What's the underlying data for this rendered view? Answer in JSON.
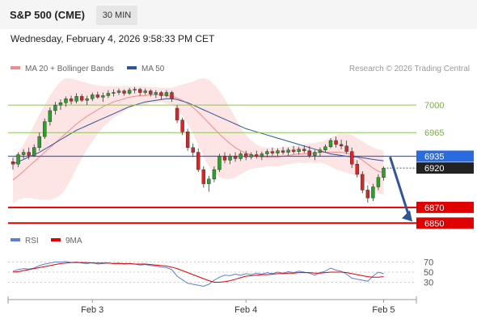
{
  "header": {
    "title": "S&P 500 (CME)",
    "timeframe": "30 MIN",
    "timestamp": "Wednesday, February 4, 2026 9:58:33 PM CET"
  },
  "legend": {
    "bb": {
      "label": "MA 20 + Bollinger Bands",
      "color": "#f28b8b"
    },
    "ma50": {
      "label": "MA 50",
      "color": "#2f5597"
    },
    "research": "Research © 2026 Trading Central"
  },
  "rsi_legend": {
    "rsi": {
      "label": "RSI",
      "color": "#5b7fd6"
    },
    "ma9": {
      "label": "9MA",
      "color": "#e00000"
    }
  },
  "chart_data": {
    "type": "candlestick",
    "x_ticks": [
      "Feb 3",
      "Feb 4",
      "Feb 5"
    ],
    "price_range": [
      6838,
      7034
    ],
    "levels": [
      {
        "value": 7000,
        "label": "7000",
        "kind": "resistance",
        "color": "#8fc35a"
      },
      {
        "value": 6965,
        "label": "6965",
        "kind": "resistance",
        "color": "#8fc35a"
      },
      {
        "value": 6935,
        "label": "6935",
        "kind": "pivot",
        "color": "#2b6be0"
      },
      {
        "value": 6870,
        "label": "6870",
        "kind": "support",
        "color": "#e00000"
      },
      {
        "value": 6850,
        "label": "6850",
        "kind": "support",
        "color": "#e00000"
      }
    ],
    "last_price": {
      "value": 6920,
      "label": "6920"
    },
    "candles": [
      [
        6928,
        6933,
        6918,
        6925
      ],
      [
        6925,
        6940,
        6921,
        6937
      ],
      [
        6937,
        6944,
        6932,
        6940
      ],
      [
        6940,
        6946,
        6931,
        6936
      ],
      [
        6936,
        6950,
        6934,
        6946
      ],
      [
        6946,
        6965,
        6942,
        6960
      ],
      [
        6960,
        6983,
        6957,
        6979
      ],
      [
        6979,
        6997,
        6974,
        6993
      ],
      [
        6993,
        7004,
        6988,
        7000
      ],
      [
        7000,
        7007,
        6994,
        7003
      ],
      [
        7003,
        7011,
        6998,
        7008
      ],
      [
        7008,
        7012,
        7001,
        7005
      ],
      [
        7005,
        7015,
        7002,
        7011
      ],
      [
        7011,
        7014,
        7004,
        7006
      ],
      [
        7006,
        7012,
        7000,
        7008
      ],
      [
        7008,
        7016,
        7005,
        7013
      ],
      [
        7013,
        7017,
        7008,
        7010
      ],
      [
        7010,
        7016,
        7004,
        7012
      ],
      [
        7012,
        7019,
        7009,
        7015
      ],
      [
        7015,
        7020,
        7011,
        7016
      ],
      [
        7016,
        7021,
        7013,
        7018
      ],
      [
        7018,
        7020,
        7012,
        7015
      ],
      [
        7015,
        7022,
        7013,
        7019
      ],
      [
        7019,
        7023,
        7015,
        7020
      ],
      [
        7020,
        7022,
        7012,
        7016
      ],
      [
        7016,
        7021,
        7013,
        7018
      ],
      [
        7018,
        7020,
        7011,
        7014
      ],
      [
        7014,
        7019,
        7009,
        7016
      ],
      [
        7016,
        7018,
        7007,
        7012
      ],
      [
        7012,
        7019,
        7010,
        7016
      ],
      [
        7016,
        7018,
        7004,
        7008
      ],
      [
        6996,
        7000,
        6977,
        6981
      ],
      [
        6981,
        6984,
        6962,
        6966
      ],
      [
        6966,
        6970,
        6942,
        6946
      ],
      [
        6946,
        6951,
        6934,
        6940
      ],
      [
        6940,
        6945,
        6915,
        6918
      ],
      [
        6918,
        6922,
        6895,
        6900
      ],
      [
        6900,
        6910,
        6890,
        6906
      ],
      [
        6906,
        6922,
        6902,
        6918
      ],
      [
        6918,
        6938,
        6915,
        6935
      ],
      [
        6935,
        6940,
        6926,
        6930
      ],
      [
        6930,
        6938,
        6925,
        6935
      ],
      [
        6935,
        6940,
        6928,
        6932
      ],
      [
        6932,
        6941,
        6929,
        6938
      ],
      [
        6938,
        6942,
        6930,
        6934
      ],
      [
        6934,
        6940,
        6931,
        6937
      ],
      [
        6937,
        6942,
        6932,
        6935
      ],
      [
        6935,
        6941,
        6930,
        6938
      ],
      [
        6938,
        6944,
        6934,
        6941
      ],
      [
        6941,
        6946,
        6936,
        6939
      ],
      [
        6939,
        6945,
        6935,
        6942
      ],
      [
        6942,
        6947,
        6937,
        6940
      ],
      [
        6940,
        6946,
        6936,
        6943
      ],
      [
        6943,
        6948,
        6938,
        6941
      ],
      [
        6941,
        6947,
        6937,
        6944
      ],
      [
        6944,
        6949,
        6939,
        6942
      ],
      [
        6942,
        6948,
        6933,
        6936
      ],
      [
        6936,
        6943,
        6930,
        6940
      ],
      [
        6940,
        6946,
        6935,
        6943
      ],
      [
        6943,
        6950,
        6940,
        6947
      ],
      [
        6947,
        6958,
        6945,
        6955
      ],
      [
        6955,
        6960,
        6946,
        6950
      ],
      [
        6950,
        6956,
        6944,
        6948
      ],
      [
        6948,
        6955,
        6938,
        6941
      ],
      [
        6941,
        6946,
        6920,
        6925
      ],
      [
        6925,
        6930,
        6908,
        6912
      ],
      [
        6912,
        6916,
        6888,
        6892
      ],
      [
        6892,
        6898,
        6876,
        6882
      ],
      [
        6882,
        6900,
        6878,
        6896
      ],
      [
        6896,
        6912,
        6892,
        6908
      ],
      [
        6908,
        6922,
        6904,
        6920
      ]
    ],
    "ma20": [
      6905,
      6910,
      6916,
      6922,
      6928,
      6934,
      6940,
      6946,
      6952,
      6958,
      6964,
      6970,
      6976,
      6981,
      6986,
      6990,
      6994,
      6998,
      7001,
      7004,
      7006,
      7008,
      7010,
      7011,
      7012,
      7012,
      7013,
      7013,
      7013,
      7012,
      7011,
      7009,
      7006,
      7002,
      6997,
      6991,
      6984,
      6977,
      6970,
      6963,
      6957,
      6951,
      6946,
      6942,
      6939,
      6937,
      6935,
      6934,
      6934,
      6934,
      6934,
      6935,
      6936,
      6937,
      6938,
      6938,
      6939,
      6939,
      6940,
      6940,
      6940,
      6940,
      6940,
      6939,
      6937,
      6934,
      6930,
      6925,
      6920,
      6916,
      6914
    ],
    "bb_upper": [
      6935,
      6940,
      6950,
      6962,
      6975,
      6988,
      7000,
      7012,
      7022,
      7030,
      7034,
      7034,
      7032,
      7030,
      7028,
      7026,
      7025,
      7024,
      7024,
      7024,
      7024,
      7024,
      7024,
      7024,
      7024,
      7024,
      7023,
      7023,
      7022,
      7022,
      7022,
      7024,
      7026,
      7028,
      7030,
      7033,
      7034,
      7032,
      7026,
      7018,
      7008,
      6996,
      6984,
      6972,
      6962,
      6955,
      6950,
      6947,
      6946,
      6946,
      6946,
      6946,
      6947,
      6948,
      6949,
      6950,
      6951,
      6952,
      6953,
      6955,
      6958,
      6962,
      6964,
      6964,
      6962,
      6958,
      6954,
      6950,
      6946,
      6944,
      6942
    ],
    "bb_lower": [
      6875,
      6880,
      6882,
      6882,
      6881,
      6880,
      6880,
      6880,
      6882,
      6886,
      6894,
      6906,
      6920,
      6932,
      6944,
      6954,
      6963,
      6972,
      6978,
      6984,
      6988,
      6992,
      6996,
      6998,
      7000,
      7000,
      7003,
      7003,
      7004,
      7002,
      7000,
      6994,
      6986,
      6976,
      6964,
      6949,
      6934,
      6922,
      6914,
      6908,
      6906,
      6906,
      6908,
      6912,
      6916,
      6919,
      6920,
      6921,
      6922,
      6922,
      6922,
      6924,
      6925,
      6926,
      6927,
      6926,
      6927,
      6926,
      6927,
      6925,
      6922,
      6918,
      6916,
      6914,
      6912,
      6910,
      6906,
      6900,
      6894,
      6888,
      6886
    ],
    "ma50": [
      6925,
      6928,
      6931,
      6934,
      6937,
      6940,
      6944,
      6948,
      6952,
      6956,
      6960,
      6964,
      6968,
      6971,
      6974,
      6977,
      6980,
      6983,
      6986,
      6989,
      6992,
      6995,
      6998,
      7000,
      7002,
      7004,
      7005,
      7006,
      7007,
      7008,
      7008,
      7007,
      7005,
      7003,
      7000,
      6997,
      6994,
      6991,
      6988,
      6985,
      6982,
      6979,
      6976,
      6973,
      6970,
      6968,
      6966,
      6964,
      6962,
      6960,
      6958,
      6956,
      6954,
      6952,
      6950,
      6948,
      6946,
      6944,
      6942,
      6940,
      6938,
      6937,
      6936,
      6935,
      6934,
      6934,
      6933,
      6932,
      6931,
      6930,
      6929
    ],
    "rsi": {
      "range": [
        10,
        90
      ],
      "ticks": [
        70,
        50,
        30
      ]
    },
    "rsi_values": [
      52,
      55,
      57,
      56,
      58,
      63,
      66,
      68,
      70,
      70,
      71,
      69,
      70,
      68,
      67,
      69,
      66,
      67,
      68,
      67,
      68,
      66,
      67,
      66,
      64,
      65,
      63,
      62,
      60,
      59,
      55,
      42,
      35,
      28,
      26,
      24,
      22,
      26,
      34,
      40,
      44,
      43,
      46,
      44,
      47,
      45,
      48,
      46,
      49,
      47,
      50,
      48,
      51,
      49,
      52,
      50,
      48,
      44,
      49,
      52,
      58,
      54,
      52,
      46,
      38,
      36,
      34,
      32,
      42,
      50,
      47
    ],
    "rsi_ma9": [
      50,
      51,
      53,
      55,
      57,
      59,
      61,
      63,
      65,
      67,
      68,
      69,
      69,
      69,
      69,
      68,
      68,
      68,
      68,
      67,
      67,
      67,
      67,
      66,
      66,
      66,
      65,
      64,
      63,
      62,
      60,
      57,
      53,
      49,
      45,
      41,
      37,
      33,
      30,
      30,
      31,
      33,
      36,
      39,
      42,
      43,
      44,
      45,
      45,
      46,
      47,
      47,
      48,
      48,
      49,
      49,
      49,
      48,
      48,
      49,
      50,
      50,
      50,
      49,
      47,
      45,
      43,
      41,
      40,
      40,
      41
    ]
  }
}
